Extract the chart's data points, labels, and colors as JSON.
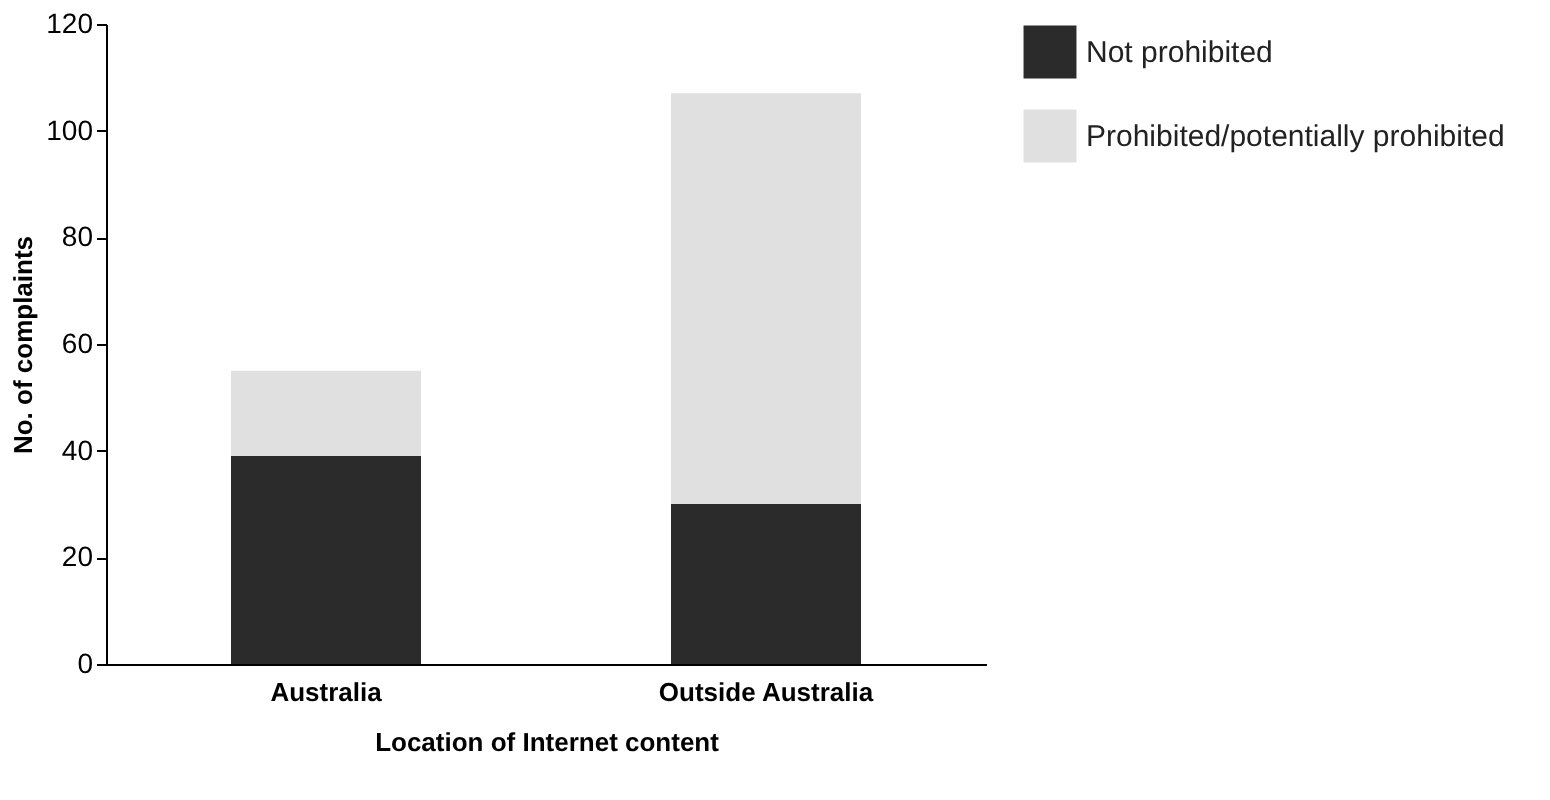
{
  "chart_data": {
    "type": "bar",
    "stacked": true,
    "xlabel": "Location of Internet content",
    "ylabel": "No. of complaints",
    "categories": [
      "Australia",
      "Outside Australia"
    ],
    "series": [
      {
        "name": "Not prohibited",
        "color": "#2b2b2b",
        "values": [
          39,
          30
        ]
      },
      {
        "name": "Prohibited/potentially prohibited",
        "color": "#e0e0e0",
        "values": [
          16,
          77
        ]
      }
    ],
    "ylim": [
      0,
      120
    ],
    "yticks": [
      0,
      20,
      40,
      60,
      80,
      100,
      120
    ],
    "grid": false,
    "legend": "right"
  }
}
